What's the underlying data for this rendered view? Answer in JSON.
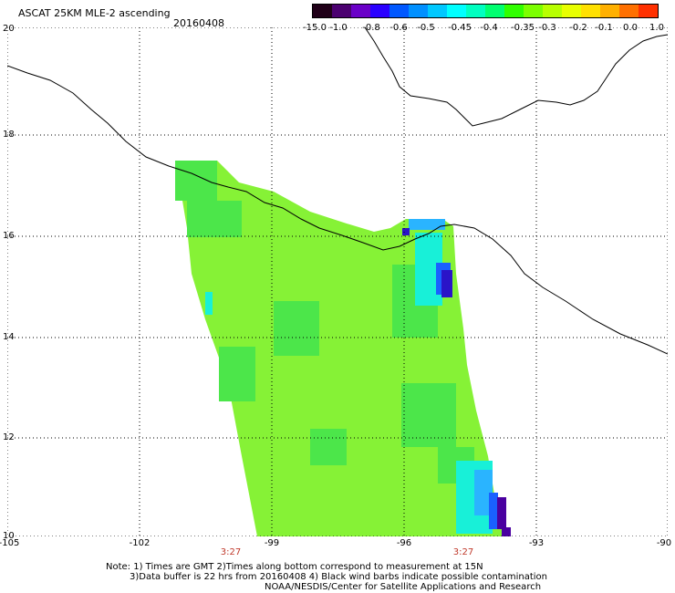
{
  "title": "ASCAT 25KM MLE-2 ascending",
  "date": "20160408",
  "colorbar": {
    "labels": [
      "-15.0",
      "-1.0",
      "-0.8",
      "-0.6",
      "-0.5",
      "-0.45",
      "-0.4",
      "-0.35",
      "-0.3",
      "-0.2",
      "-0.1",
      "0.0",
      "1.0"
    ],
    "colors": [
      "#200018",
      "#4b0070",
      "#6a00c8",
      "#2a00ff",
      "#0058ff",
      "#0090ff",
      "#00c8ff",
      "#00ffff",
      "#00ffc0",
      "#00ff70",
      "#30ff00",
      "#7cff00",
      "#b8ff00",
      "#e8ff00",
      "#ffe000",
      "#ffb000",
      "#ff7000",
      "#ff3000"
    ]
  },
  "map": {
    "lat_labels": [
      "20",
      "18",
      "16",
      "14",
      "12",
      "10"
    ],
    "lon_labels": [
      "-105",
      "-102",
      "-99",
      "-96",
      "-93",
      "-90"
    ],
    "time_labels": [
      "3:27",
      "3:27"
    ],
    "swath_colors": {
      "base": "#86f236",
      "green": "#4ce64a",
      "cyan": "#18f0d8",
      "blue": "#1a60ff",
      "navy": "#2a14c8",
      "purple": "#4a00a0",
      "lightblue": "#2ab4ff"
    }
  },
  "footer": {
    "note_line1": "Note: 1) Times are GMT 2)Times along bottom correspond to measurement at 15N",
    "note_line2": "3)Data buffer is 22 hrs from 20160408 4) Black wind barbs indicate possible contamination",
    "credit": "NOAA/NESDIS/Center for Satellite Applications and Research"
  }
}
